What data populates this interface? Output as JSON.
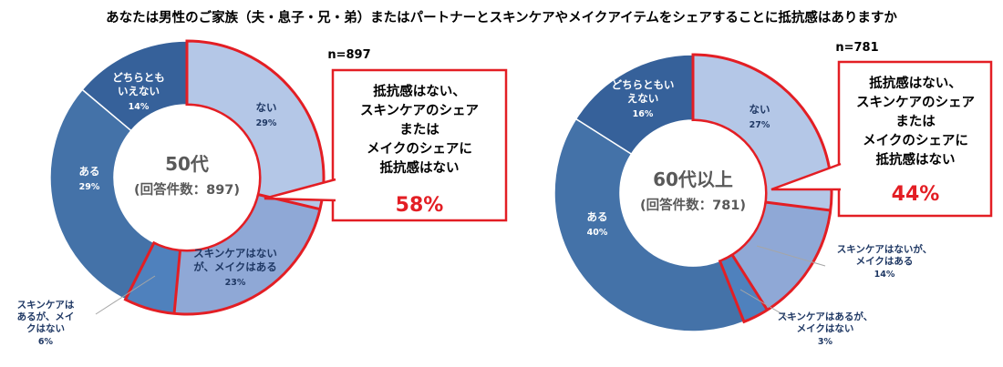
{
  "title": "あなたは男性のご家族（夫・息子・兄・弟）またはパートナーとスキンケアやメイクアイテムをシェアすることに抵抗感はありますか",
  "colors": {
    "none": "#b4c7e7",
    "skincare_ok_makeup_ok": "#8fa8d6",
    "skincare_yes_makeup_no": "#4f81bd",
    "yes": "#4472a8",
    "neither": "#36619a",
    "highlight_red": "#e31e24",
    "label_dark": "#1f3864"
  },
  "chart_data": [
    {
      "type": "pie",
      "variant": "donut",
      "n_label": "n=897",
      "center_line1": "50代",
      "center_line2": "(回答件数：897)",
      "slices": [
        {
          "key": "none",
          "label": [
            "ない"
          ],
          "value": 29,
          "pct": "29%",
          "color": "#b4c7e7",
          "highlight": true
        },
        {
          "key": "skincare_ok_makeup_ok",
          "label": [
            "スキンケアはない",
            "が、メイクはある"
          ],
          "value": 23,
          "pct": "23%",
          "color": "#8fa8d6",
          "highlight": true
        },
        {
          "key": "skincare_yes_makeup_no",
          "label": [
            "スキンケアは",
            "あるが、メイ",
            "クはない"
          ],
          "value": 6,
          "pct": "6%",
          "color": "#4f81bd",
          "highlight": true
        },
        {
          "key": "yes",
          "label": [
            "ある"
          ],
          "value": 29,
          "pct": "29%",
          "color": "#4472a8",
          "highlight": false
        },
        {
          "key": "neither",
          "label": [
            "どちらとも",
            "いえない"
          ],
          "value": 14,
          "pct": "14%",
          "color": "#36619a",
          "highlight": false
        }
      ],
      "callout": {
        "lines": [
          "抵抗感はない、",
          "スキンケアのシェア",
          "または",
          "メイクのシェアに",
          "抵抗感はない"
        ],
        "value": "58%"
      }
    },
    {
      "type": "pie",
      "variant": "donut",
      "n_label": "n=781",
      "center_line1": "60代以上",
      "center_line2": "(回答件数：781)",
      "slices": [
        {
          "key": "none",
          "label": [
            "ない"
          ],
          "value": 27,
          "pct": "27%",
          "color": "#b4c7e7",
          "highlight": true
        },
        {
          "key": "skincare_ok_makeup_ok",
          "label": [
            "スキンケアはないが、",
            "メイクはある"
          ],
          "value": 14,
          "pct": "14%",
          "color": "#8fa8d6",
          "highlight": true
        },
        {
          "key": "skincare_yes_makeup_no",
          "label": [
            "スキンケアはあるが、",
            "メイクはない"
          ],
          "value": 3,
          "pct": "3%",
          "color": "#4f81bd",
          "highlight": true
        },
        {
          "key": "yes",
          "label": [
            "ある"
          ],
          "value": 40,
          "pct": "40%",
          "color": "#4472a8",
          "highlight": false
        },
        {
          "key": "neither",
          "label": [
            "どちらともい",
            "えない"
          ],
          "value": 16,
          "pct": "16%",
          "color": "#36619a",
          "highlight": false
        }
      ],
      "callout": {
        "lines": [
          "抵抗感はない、",
          "スキンケアのシェア",
          "または",
          "メイクのシェアに",
          "抵抗感はない"
        ],
        "value": "44%"
      }
    }
  ]
}
